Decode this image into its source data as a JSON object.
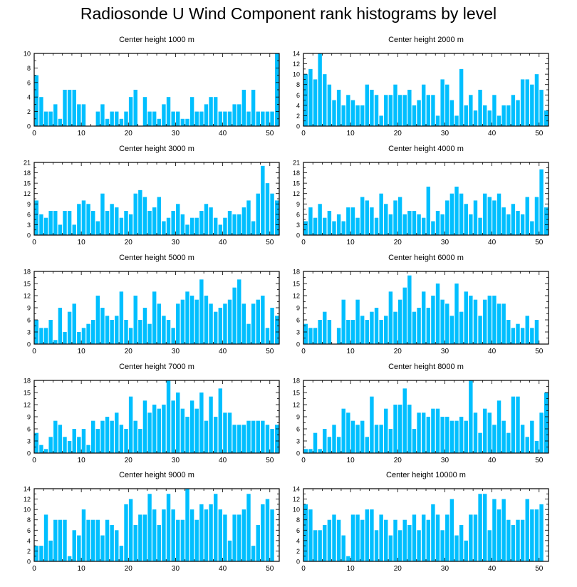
{
  "chart_data": {
    "title": "Radiosonde U Wind Component rank histograms by level",
    "type": "bar",
    "bar_color": "#00bfff",
    "panels": [
      {
        "title": "Center height 1000 m",
        "xlim": [
          0,
          52
        ],
        "ylim": [
          0,
          10
        ],
        "xticks": [
          0,
          10,
          20,
          30,
          40,
          50
        ],
        "yticks": [
          0,
          2,
          4,
          6,
          8,
          10
        ],
        "values": [
          7,
          4,
          2,
          2,
          3,
          1,
          5,
          5,
          5,
          3,
          3,
          0,
          0,
          2,
          3,
          1,
          2,
          2,
          1,
          2,
          4,
          5,
          0,
          4,
          2,
          2,
          1,
          3,
          4,
          2,
          2,
          1,
          1,
          4,
          2,
          2,
          3,
          4,
          4,
          2,
          2,
          2,
          3,
          3,
          5,
          2,
          5,
          2,
          2,
          2,
          2,
          10
        ]
      },
      {
        "title": "Center height 2000 m",
        "xlim": [
          0,
          52
        ],
        "ylim": [
          0,
          14
        ],
        "xticks": [
          0,
          10,
          20,
          30,
          40,
          50
        ],
        "yticks": [
          0,
          2,
          4,
          6,
          8,
          10,
          12,
          14
        ],
        "values": [
          10,
          11,
          9,
          14,
          10,
          8,
          5,
          7,
          4,
          6,
          5,
          4,
          4,
          8,
          7,
          6,
          2,
          6,
          6,
          8,
          6,
          6,
          7,
          4,
          5,
          8,
          6,
          6,
          2,
          9,
          8,
          5,
          2,
          11,
          4,
          6,
          3,
          7,
          4,
          3,
          6,
          2,
          4,
          4,
          6,
          5,
          9,
          9,
          8,
          10,
          7,
          3
        ]
      },
      {
        "title": "Center height 3000 m",
        "xlim": [
          0,
          52
        ],
        "ylim": [
          0,
          21
        ],
        "xticks": [
          0,
          10,
          20,
          30,
          40,
          50
        ],
        "yticks": [
          0,
          3,
          6,
          9,
          12,
          15,
          18,
          21
        ],
        "values": [
          10,
          6,
          5,
          7,
          7,
          3,
          7,
          7,
          3,
          9,
          10,
          9,
          7,
          4,
          12,
          7,
          9,
          8,
          5,
          7,
          6,
          12,
          13,
          11,
          7,
          8,
          11,
          4,
          5,
          7,
          9,
          6,
          3,
          5,
          5,
          7,
          9,
          8,
          5,
          3,
          5,
          7,
          6,
          6,
          8,
          10,
          4,
          12,
          20,
          15,
          12,
          10
        ]
      },
      {
        "title": "Center height 4000 m",
        "xlim": [
          0,
          52
        ],
        "ylim": [
          0,
          21
        ],
        "xticks": [
          0,
          10,
          20,
          30,
          40,
          50
        ],
        "yticks": [
          0,
          3,
          6,
          9,
          12,
          15,
          18,
          21
        ],
        "values": [
          4,
          8,
          5,
          9,
          5,
          7,
          4,
          6,
          4,
          8,
          8,
          5,
          11,
          10,
          8,
          5,
          12,
          9,
          6,
          10,
          11,
          6,
          7,
          7,
          6,
          5,
          14,
          4,
          7,
          6,
          10,
          12,
          14,
          12,
          9,
          6,
          10,
          5,
          12,
          11,
          10,
          12,
          8,
          6,
          9,
          7,
          6,
          11,
          4,
          11,
          19,
          8
        ]
      },
      {
        "title": "Center height 5000 m",
        "xlim": [
          0,
          52
        ],
        "ylim": [
          0,
          18
        ],
        "xticks": [
          0,
          10,
          20,
          30,
          40,
          50
        ],
        "yticks": [
          0,
          3,
          6,
          9,
          12,
          15,
          18
        ],
        "values": [
          6,
          4,
          4,
          6,
          1,
          9,
          3,
          8,
          10,
          3,
          4,
          5,
          6,
          12,
          9,
          7,
          6,
          7,
          13,
          6,
          4,
          12,
          6,
          9,
          5,
          13,
          10,
          7,
          6,
          4,
          10,
          11,
          13,
          12,
          11,
          16,
          12,
          10,
          8,
          9,
          10,
          11,
          14,
          16,
          10,
          5,
          10,
          11,
          12,
          4,
          9,
          7
        ]
      },
      {
        "title": "Center height 6000 m",
        "xlim": [
          0,
          52
        ],
        "ylim": [
          0,
          18
        ],
        "xticks": [
          0,
          10,
          20,
          30,
          40,
          50
        ],
        "yticks": [
          0,
          3,
          6,
          9,
          12,
          15,
          18
        ],
        "values": [
          5,
          4,
          4,
          6,
          8,
          6,
          0,
          4,
          11,
          6,
          6,
          11,
          7,
          6,
          8,
          9,
          6,
          7,
          13,
          8,
          11,
          14,
          17,
          8,
          9,
          13,
          9,
          12,
          15,
          11,
          10,
          7,
          15,
          8,
          13,
          12,
          11,
          7,
          11,
          12,
          12,
          10,
          10,
          6,
          4,
          5,
          4,
          7,
          4,
          6,
          0,
          0
        ]
      },
      {
        "title": "Center height 7000 m",
        "xlim": [
          0,
          52
        ],
        "ylim": [
          0,
          18
        ],
        "xticks": [
          0,
          10,
          20,
          30,
          40,
          50
        ],
        "yticks": [
          0,
          3,
          6,
          9,
          12,
          15,
          18
        ],
        "values": [
          5,
          2,
          1,
          4,
          8,
          7,
          4,
          3,
          6,
          4,
          6,
          2,
          8,
          6,
          8,
          9,
          8,
          10,
          7,
          6,
          14,
          8,
          6,
          13,
          10,
          12,
          11,
          12,
          18,
          13,
          15,
          11,
          9,
          13,
          11,
          15,
          8,
          14,
          9,
          16,
          10,
          10,
          7,
          7,
          7,
          8,
          8,
          8,
          8,
          7,
          6,
          7
        ]
      },
      {
        "title": "Center height 8000 m",
        "xlim": [
          0,
          52
        ],
        "ylim": [
          0,
          18
        ],
        "xticks": [
          0,
          10,
          20,
          30,
          40,
          50
        ],
        "yticks": [
          0,
          3,
          6,
          9,
          12,
          15,
          18
        ],
        "values": [
          1,
          1,
          5,
          1,
          6,
          4,
          7,
          4,
          11,
          10,
          8,
          7,
          8,
          4,
          14,
          7,
          7,
          11,
          6,
          12,
          12,
          16,
          12,
          6,
          10,
          10,
          9,
          11,
          11,
          9,
          9,
          8,
          8,
          9,
          8,
          18,
          10,
          5,
          11,
          10,
          7,
          13,
          8,
          5,
          14,
          14,
          7,
          4,
          8,
          3,
          10,
          15
        ]
      },
      {
        "title": "Center height 9000 m",
        "xlim": [
          0,
          52
        ],
        "ylim": [
          0,
          14
        ],
        "xticks": [
          0,
          10,
          20,
          30,
          40,
          50
        ],
        "yticks": [
          0,
          2,
          4,
          6,
          8,
          10,
          12,
          14
        ],
        "values": [
          3,
          3,
          9,
          4,
          8,
          8,
          8,
          1,
          6,
          5,
          10,
          8,
          8,
          8,
          5,
          8,
          7,
          6,
          3,
          11,
          12,
          7,
          9,
          9,
          13,
          10,
          7,
          10,
          13,
          10,
          8,
          8,
          14,
          10,
          8,
          11,
          10,
          11,
          13,
          10,
          9,
          4,
          9,
          9,
          10,
          13,
          3,
          7,
          11,
          12,
          10,
          0
        ]
      },
      {
        "title": "Center height 10000 m",
        "xlim": [
          0,
          52
        ],
        "ylim": [
          0,
          14
        ],
        "xticks": [
          0,
          10,
          20,
          30,
          40,
          50
        ],
        "yticks": [
          0,
          2,
          4,
          6,
          8,
          10,
          12,
          14
        ],
        "values": [
          11,
          10,
          6,
          6,
          7,
          8,
          9,
          8,
          5,
          1,
          9,
          9,
          8,
          10,
          10,
          6,
          9,
          8,
          5,
          8,
          6,
          8,
          7,
          9,
          6,
          9,
          8,
          11,
          9,
          6,
          9,
          12,
          5,
          7,
          4,
          9,
          9,
          13,
          13,
          6,
          12,
          10,
          12,
          8,
          7,
          8,
          8,
          12,
          10,
          10,
          11,
          0
        ]
      }
    ]
  }
}
